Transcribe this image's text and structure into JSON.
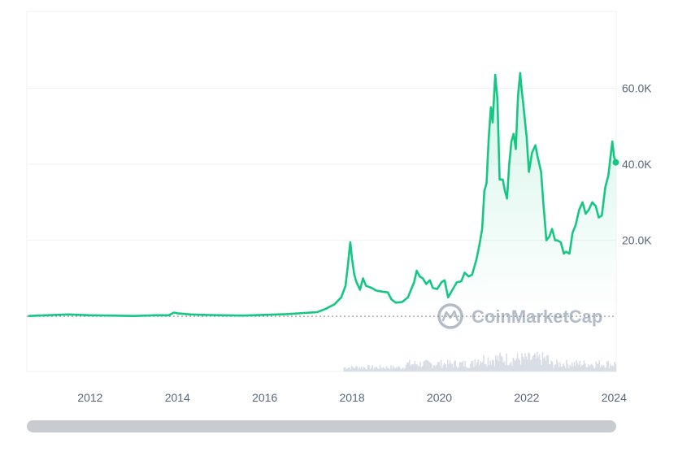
{
  "chart_data": {
    "type": "area",
    "x_unit": "year",
    "series": [
      {
        "values": [
          [
            2010.6,
            0.1
          ],
          [
            2011.0,
            0.3
          ],
          [
            2011.5,
            0.5
          ],
          [
            2012.0,
            0.3
          ],
          [
            2012.5,
            0.2
          ],
          [
            2013.0,
            0.1
          ],
          [
            2013.5,
            0.3
          ],
          [
            2013.8,
            0.3
          ],
          [
            2013.92,
            1.0
          ],
          [
            2014.0,
            0.8
          ],
          [
            2014.3,
            0.5
          ],
          [
            2014.6,
            0.4
          ],
          [
            2015.0,
            0.3
          ],
          [
            2015.5,
            0.2
          ],
          [
            2016.0,
            0.4
          ],
          [
            2016.5,
            0.6
          ],
          [
            2016.9,
            0.9
          ],
          [
            2017.2,
            1.1
          ],
          [
            2017.4,
            2.0
          ],
          [
            2017.6,
            3.2
          ],
          [
            2017.75,
            5.0
          ],
          [
            2017.85,
            8.0
          ],
          [
            2017.9,
            13.0
          ],
          [
            2017.96,
            19.5
          ],
          [
            2018.0,
            15.0
          ],
          [
            2018.05,
            11.0
          ],
          [
            2018.1,
            9.0
          ],
          [
            2018.18,
            7.0
          ],
          [
            2018.25,
            10.0
          ],
          [
            2018.32,
            8.0
          ],
          [
            2018.45,
            7.5
          ],
          [
            2018.55,
            6.8
          ],
          [
            2018.7,
            6.5
          ],
          [
            2018.82,
            6.3
          ],
          [
            2018.9,
            4.5
          ],
          [
            2019.0,
            3.6
          ],
          [
            2019.15,
            3.8
          ],
          [
            2019.28,
            5.0
          ],
          [
            2019.35,
            7.0
          ],
          [
            2019.42,
            9.0
          ],
          [
            2019.48,
            12.0
          ],
          [
            2019.55,
            10.5
          ],
          [
            2019.62,
            10.0
          ],
          [
            2019.7,
            8.5
          ],
          [
            2019.78,
            9.5
          ],
          [
            2019.85,
            7.5
          ],
          [
            2019.95,
            7.2
          ],
          [
            2020.05,
            9.0
          ],
          [
            2020.12,
            9.5
          ],
          [
            2020.2,
            5.0
          ],
          [
            2020.3,
            7.0
          ],
          [
            2020.4,
            9.0
          ],
          [
            2020.5,
            9.2
          ],
          [
            2020.58,
            11.5
          ],
          [
            2020.67,
            10.5
          ],
          [
            2020.75,
            11.0
          ],
          [
            2020.85,
            15.0
          ],
          [
            2020.92,
            19.0
          ],
          [
            2020.98,
            23.0
          ],
          [
            2021.03,
            33.0
          ],
          [
            2021.08,
            35.0
          ],
          [
            2021.13,
            47.0
          ],
          [
            2021.18,
            55.0
          ],
          [
            2021.22,
            51.0
          ],
          [
            2021.28,
            63.5
          ],
          [
            2021.33,
            57.0
          ],
          [
            2021.38,
            36.0
          ],
          [
            2021.45,
            36.0
          ],
          [
            2021.5,
            33.0
          ],
          [
            2021.55,
            31.0
          ],
          [
            2021.6,
            40.0
          ],
          [
            2021.65,
            46.0
          ],
          [
            2021.7,
            48.0
          ],
          [
            2021.75,
            44.0
          ],
          [
            2021.8,
            58.0
          ],
          [
            2021.85,
            64.0
          ],
          [
            2021.88,
            60.0
          ],
          [
            2021.92,
            56.0
          ],
          [
            2022.0,
            47.0
          ],
          [
            2022.05,
            38.0
          ],
          [
            2022.12,
            43.0
          ],
          [
            2022.2,
            45.0
          ],
          [
            2022.25,
            42.0
          ],
          [
            2022.33,
            38.0
          ],
          [
            2022.38,
            30.0
          ],
          [
            2022.45,
            20.0
          ],
          [
            2022.52,
            21.0
          ],
          [
            2022.58,
            23.0
          ],
          [
            2022.65,
            20.0
          ],
          [
            2022.7,
            20.0
          ],
          [
            2022.78,
            19.5
          ],
          [
            2022.85,
            16.5
          ],
          [
            2022.9,
            17.0
          ],
          [
            2022.98,
            16.5
          ],
          [
            2023.05,
            22.0
          ],
          [
            2023.12,
            24.0
          ],
          [
            2023.2,
            28.0
          ],
          [
            2023.28,
            30.0
          ],
          [
            2023.35,
            27.0
          ],
          [
            2023.42,
            28.0
          ],
          [
            2023.5,
            30.0
          ],
          [
            2023.58,
            29.0
          ],
          [
            2023.65,
            26.0
          ],
          [
            2023.72,
            26.5
          ],
          [
            2023.8,
            34.0
          ],
          [
            2023.87,
            37.0
          ],
          [
            2023.92,
            42.0
          ],
          [
            2023.96,
            46.0
          ],
          [
            2024.0,
            42.0
          ],
          [
            2024.04,
            40.5
          ]
        ]
      }
    ],
    "x_ticks": [
      "2012",
      "2014",
      "2016",
      "2018",
      "2020",
      "2022",
      "2024"
    ],
    "x_tick_values": [
      2012,
      2014,
      2016,
      2018,
      2020,
      2022,
      2024
    ],
    "y_ticks": [
      "20.0K",
      "40.0K",
      "60.0K"
    ],
    "y_tick_values": [
      20,
      40,
      60
    ],
    "xlim": [
      2010.55,
      2024.05
    ],
    "ylim": [
      -14.5,
      80.2
    ],
    "reference_line": 0,
    "grid": true,
    "title": "",
    "xlabel": "",
    "ylabel": "",
    "colors": {
      "line": "#16c784",
      "fill": "#16c784",
      "grid": "#eff2f5",
      "axis_text": "#58667e",
      "volume": "#d9dee6",
      "reference": "#7a7f87"
    }
  },
  "watermark": {
    "text": "CoinMarketCap"
  }
}
